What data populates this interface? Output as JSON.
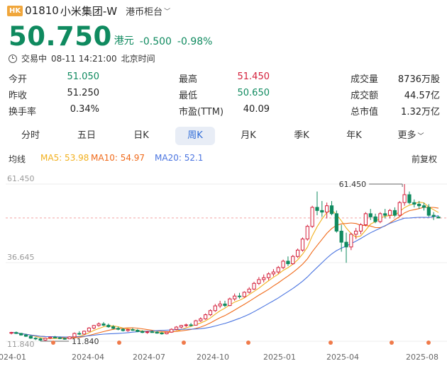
{
  "stock": {
    "badge": "HK",
    "code": "01810",
    "name": "小米集团-W",
    "board": "港币柜台",
    "price": "50.750",
    "currency": "港元",
    "change": "-0.500",
    "change_pct": "-0.98%",
    "status": "交易中",
    "datetime": "08-11 14:21:00",
    "timezone": "北京时间"
  },
  "stats": {
    "open_label": "今开",
    "open": "51.050",
    "prev_close_label": "昨收",
    "prev_close": "51.250",
    "turnover_rate_label": "换手率",
    "turnover_rate": "0.34%",
    "high_label": "最高",
    "high": "51.450",
    "low_label": "最低",
    "low": "50.650",
    "pe_label": "市盈(TTM)",
    "pe": "40.09",
    "volume_label": "成交量",
    "volume": "8736万股",
    "amount_label": "成交额",
    "amount": "44.57亿",
    "market_cap_label": "总市值",
    "market_cap": "1.32万亿"
  },
  "tabs": [
    {
      "label": "分时"
    },
    {
      "label": "五日"
    },
    {
      "label": "日K"
    },
    {
      "label": "周K",
      "active": true
    },
    {
      "label": "月K"
    },
    {
      "label": "季K"
    },
    {
      "label": "年K"
    },
    {
      "label": "更多"
    }
  ],
  "ma": {
    "label": "均线",
    "ma5": "MA5: 53.98",
    "ma10": "MA10: 54.97",
    "ma20": "MA20: 52.1",
    "adjust": "前复权"
  },
  "colors": {
    "up": "#d4203b",
    "down": "#0f8a5f",
    "ma5": "#f2b01e",
    "ma10": "#f06a1a",
    "ma20": "#4a74e0",
    "event_dot": "#f07a4a"
  },
  "chart_data": {
    "type": "candlestick",
    "period": "weekly",
    "y_ticks": [
      "61.450",
      "36.645",
      "11.840"
    ],
    "ylim": [
      11.84,
      61.45
    ],
    "x_ticks": [
      "2024-01",
      "2024-04",
      "2024-07",
      "2024-10",
      "2025-01",
      "2025-04",
      "2025-08"
    ],
    "max_label": "61.450",
    "min_label": "11.840",
    "current_price_line": 50.75,
    "candles": [
      [
        14.4,
        14.8,
        14.0,
        14.6
      ],
      [
        14.6,
        14.9,
        14.1,
        14.3
      ],
      [
        14.3,
        14.5,
        13.6,
        13.8
      ],
      [
        13.8,
        14.2,
        13.2,
        13.4
      ],
      [
        13.4,
        13.7,
        12.6,
        12.8
      ],
      [
        12.8,
        13.1,
        12.2,
        12.6
      ],
      [
        12.6,
        12.9,
        11.84,
        12.2
      ],
      [
        12.2,
        13.0,
        12.0,
        12.8
      ],
      [
        12.8,
        13.4,
        12.5,
        13.1
      ],
      [
        13.1,
        13.5,
        12.8,
        12.9
      ],
      [
        12.9,
        13.3,
        12.5,
        12.7
      ],
      [
        12.7,
        13.0,
        12.3,
        12.6
      ],
      [
        12.6,
        13.4,
        12.5,
        13.2
      ],
      [
        13.2,
        14.6,
        13.0,
        14.3
      ],
      [
        14.3,
        15.0,
        13.8,
        14.1
      ],
      [
        14.1,
        15.2,
        13.9,
        15.0
      ],
      [
        15.0,
        16.3,
        14.8,
        16.0
      ],
      [
        16.0,
        17.0,
        15.6,
        16.8
      ],
      [
        16.8,
        17.8,
        16.4,
        17.3
      ],
      [
        17.3,
        17.9,
        16.6,
        16.9
      ],
      [
        16.9,
        17.4,
        16.1,
        16.4
      ],
      [
        16.4,
        16.9,
        15.6,
        15.9
      ],
      [
        15.9,
        16.4,
        15.3,
        15.6
      ],
      [
        15.6,
        16.0,
        14.9,
        15.2
      ],
      [
        15.2,
        15.8,
        14.8,
        15.5
      ],
      [
        15.5,
        16.0,
        15.1,
        15.3
      ],
      [
        15.3,
        15.7,
        14.7,
        14.9
      ],
      [
        14.9,
        15.3,
        14.4,
        14.6
      ],
      [
        14.6,
        15.1,
        14.2,
        14.8
      ],
      [
        14.8,
        15.2,
        14.5,
        14.7
      ],
      [
        14.7,
        15.0,
        14.2,
        14.4
      ],
      [
        14.4,
        14.8,
        13.9,
        14.2
      ],
      [
        14.2,
        14.9,
        14.0,
        14.7
      ],
      [
        14.7,
        15.9,
        14.5,
        15.6
      ],
      [
        15.6,
        16.6,
        15.3,
        16.3
      ],
      [
        16.3,
        17.0,
        15.9,
        16.8
      ],
      [
        16.8,
        17.4,
        16.3,
        17.0
      ],
      [
        17.0,
        17.6,
        16.5,
        16.9
      ],
      [
        16.9,
        18.6,
        16.8,
        18.3
      ],
      [
        18.3,
        19.4,
        17.9,
        18.9
      ],
      [
        18.9,
        20.6,
        18.6,
        20.2
      ],
      [
        20.2,
        21.9,
        19.8,
        21.5
      ],
      [
        21.5,
        23.6,
        21.1,
        23.0
      ],
      [
        23.0,
        24.6,
        22.3,
        23.6
      ],
      [
        23.6,
        24.6,
        22.6,
        23.1
      ],
      [
        23.1,
        25.6,
        22.9,
        25.2
      ],
      [
        25.2,
        26.9,
        24.6,
        26.1
      ],
      [
        26.1,
        27.1,
        25.3,
        25.9
      ],
      [
        25.9,
        27.6,
        25.6,
        27.3
      ],
      [
        27.3,
        28.9,
        26.9,
        28.3
      ],
      [
        28.3,
        30.6,
        28.0,
        30.1
      ],
      [
        30.1,
        32.1,
        29.6,
        31.3
      ],
      [
        31.3,
        32.9,
        30.4,
        31.9
      ],
      [
        31.9,
        33.6,
        31.1,
        33.1
      ],
      [
        33.1,
        34.6,
        32.3,
        33.7
      ],
      [
        33.7,
        35.6,
        33.1,
        35.1
      ],
      [
        35.1,
        37.6,
        34.6,
        37.1
      ],
      [
        37.1,
        38.6,
        35.6,
        36.3
      ],
      [
        36.3,
        39.1,
        36.0,
        38.6
      ],
      [
        38.6,
        41.1,
        38.1,
        40.6
      ],
      [
        40.6,
        44.6,
        40.1,
        44.1
      ],
      [
        44.1,
        48.6,
        43.6,
        48.1
      ],
      [
        48.1,
        54.6,
        47.6,
        54.1
      ],
      [
        54.1,
        59.1,
        51.6,
        53.1
      ],
      [
        53.1,
        56.1,
        51.1,
        52.6
      ],
      [
        52.6,
        55.6,
        50.6,
        54.6
      ],
      [
        54.6,
        56.1,
        51.6,
        52.1
      ],
      [
        52.1,
        53.1,
        46.1,
        46.6
      ],
      [
        46.6,
        48.6,
        40.1,
        43.1
      ],
      [
        43.1,
        46.1,
        36.6,
        41.6
      ],
      [
        41.6,
        46.1,
        40.6,
        45.6
      ],
      [
        45.6,
        47.6,
        44.1,
        46.6
      ],
      [
        46.6,
        49.1,
        45.6,
        48.6
      ],
      [
        48.6,
        52.6,
        48.1,
        52.1
      ],
      [
        52.1,
        53.6,
        50.1,
        51.1
      ],
      [
        51.1,
        52.1,
        49.1,
        49.6
      ],
      [
        49.6,
        52.6,
        49.1,
        52.1
      ],
      [
        52.1,
        53.6,
        50.6,
        51.6
      ],
      [
        51.6,
        53.6,
        50.6,
        53.1
      ],
      [
        53.1,
        54.1,
        51.1,
        51.6
      ],
      [
        51.6,
        56.1,
        51.1,
        55.6
      ],
      [
        55.6,
        61.45,
        54.6,
        58.1
      ],
      [
        58.1,
        59.1,
        55.1,
        55.6
      ],
      [
        55.6,
        56.6,
        54.1,
        55.1
      ],
      [
        55.1,
        56.1,
        53.6,
        54.6
      ],
      [
        54.6,
        55.6,
        53.1,
        54.1
      ],
      [
        54.1,
        55.1,
        51.1,
        51.6
      ],
      [
        51.6,
        52.6,
        50.1,
        51.25
      ],
      [
        51.05,
        51.45,
        50.65,
        50.75
      ]
    ]
  }
}
